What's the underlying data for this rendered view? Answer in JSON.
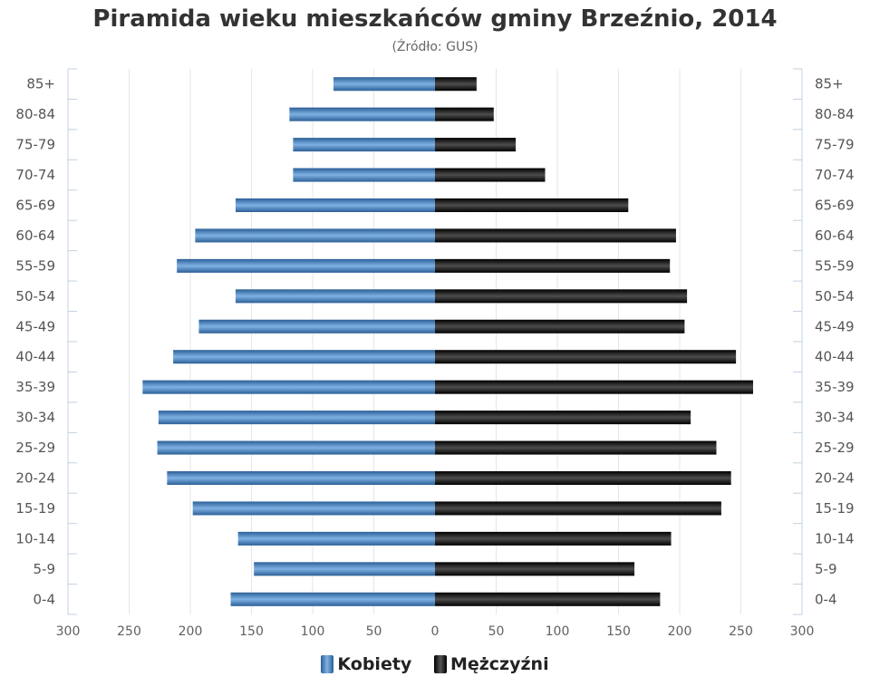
{
  "chart_data": {
    "type": "bar",
    "orientation": "horizontal",
    "title": "Piramida wieku mieszkańców gminy Brzeźnio, 2014",
    "subtitle": "(Źródło: GUS)",
    "categories": [
      "85+",
      "80-84",
      "75-79",
      "70-74",
      "65-69",
      "60-64",
      "55-59",
      "50-54",
      "45-49",
      "40-44",
      "35-39",
      "30-34",
      "25-29",
      "20-24",
      "15-19",
      "10-14",
      "5-9",
      "0-4"
    ],
    "series": [
      {
        "name": "Kobiety",
        "color": "#4a86c5",
        "values": [
          83,
          119,
          116,
          116,
          163,
          196,
          211,
          163,
          193,
          214,
          239,
          226,
          227,
          219,
          198,
          161,
          148,
          167
        ]
      },
      {
        "name": "Mężczyźni",
        "color": "#222222",
        "values": [
          34,
          48,
          66,
          90,
          158,
          197,
          192,
          206,
          204,
          246,
          260,
          209,
          230,
          242,
          234,
          193,
          163,
          184
        ]
      }
    ],
    "xlim": [
      -300,
      300
    ],
    "x_ticks": [
      -300,
      -250,
      -200,
      -150,
      -100,
      -50,
      0,
      50,
      100,
      150,
      200,
      250,
      300
    ],
    "x_tick_labels": [
      "300",
      "250",
      "200",
      "150",
      "100",
      "50",
      "0",
      "50",
      "100",
      "150",
      "200",
      "250",
      "300"
    ],
    "grid": true,
    "legend": "bottom-center"
  }
}
